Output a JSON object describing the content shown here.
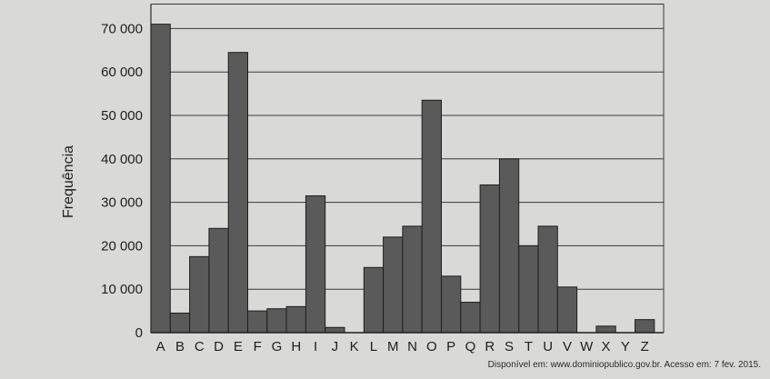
{
  "chart_data": {
    "type": "bar",
    "title": "",
    "xlabel": "",
    "ylabel": "Frequência",
    "ylim": [
      0,
      75000
    ],
    "yticks": [
      0,
      10000,
      20000,
      30000,
      40000,
      50000,
      60000,
      70000
    ],
    "ytick_labels": [
      "0",
      "10 000",
      "20 000",
      "30 000",
      "40 000",
      "50 000",
      "60 000",
      "70 000"
    ],
    "grid": "horizontal",
    "bar_color": "#5a5a5a",
    "categories": [
      "A",
      "B",
      "C",
      "D",
      "E",
      "F",
      "G",
      "H",
      "I",
      "J",
      "K",
      "L",
      "M",
      "N",
      "O",
      "P",
      "Q",
      "R",
      "S",
      "T",
      "U",
      "V",
      "W",
      "X",
      "Y",
      "Z"
    ],
    "values": [
      71000,
      4500,
      17500,
      24000,
      64500,
      5000,
      5500,
      6000,
      31500,
      1200,
      0,
      15000,
      22000,
      24500,
      53500,
      13000,
      7000,
      34000,
      40000,
      20000,
      24500,
      10500,
      0,
      1500,
      0,
      3000
    ]
  },
  "source": "Disponível em: www.dominiopublico.gov.br. Acesso em: 7 fev. 2015."
}
